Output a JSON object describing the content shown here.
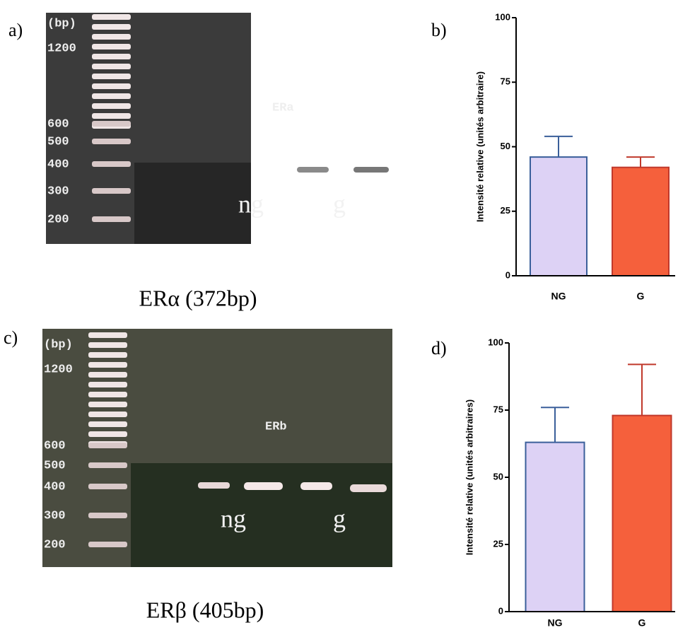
{
  "panel_labels": [
    "a)",
    "b)",
    "c)",
    "d)"
  ],
  "gels": [
    {
      "ladder_labels": [
        "(bp)",
        "1200",
        "600",
        "500",
        "400",
        "300",
        "200"
      ],
      "band_label": "ERa",
      "lane_labels": [
        "ng",
        "g"
      ],
      "caption": "ERα (372bp)"
    },
    {
      "ladder_labels": [
        "(bp)",
        "1200",
        "600",
        "500",
        "400",
        "300",
        "200"
      ],
      "band_label": "ERb",
      "lane_labels": [
        "ng",
        "g"
      ],
      "caption": "ERβ (405bp)"
    }
  ],
  "chart_data": [
    {
      "type": "bar",
      "ylabel": "Intensité relative (unités arbitraire)",
      "categories": [
        "NG",
        "G"
      ],
      "values": [
        46,
        42
      ],
      "errors": [
        8,
        4
      ],
      "colors": [
        "#ddd2f5",
        "#f5603c"
      ],
      "edge_colors": [
        "#3a5f9a",
        "#c0392b"
      ],
      "ylim": [
        0,
        100
      ],
      "yticks": [
        0,
        25,
        50,
        75,
        100
      ]
    },
    {
      "type": "bar",
      "ylabel": "Intensité relative (unités arbitraires)",
      "categories": [
        "NG",
        "G"
      ],
      "values": [
        63,
        73
      ],
      "errors": [
        13,
        19
      ],
      "colors": [
        "#ddd2f5",
        "#f5603c"
      ],
      "edge_colors": [
        "#3a5f9a",
        "#c0392b"
      ],
      "ylim": [
        0,
        100
      ],
      "yticks": [
        0,
        25,
        50,
        75,
        100
      ]
    }
  ]
}
